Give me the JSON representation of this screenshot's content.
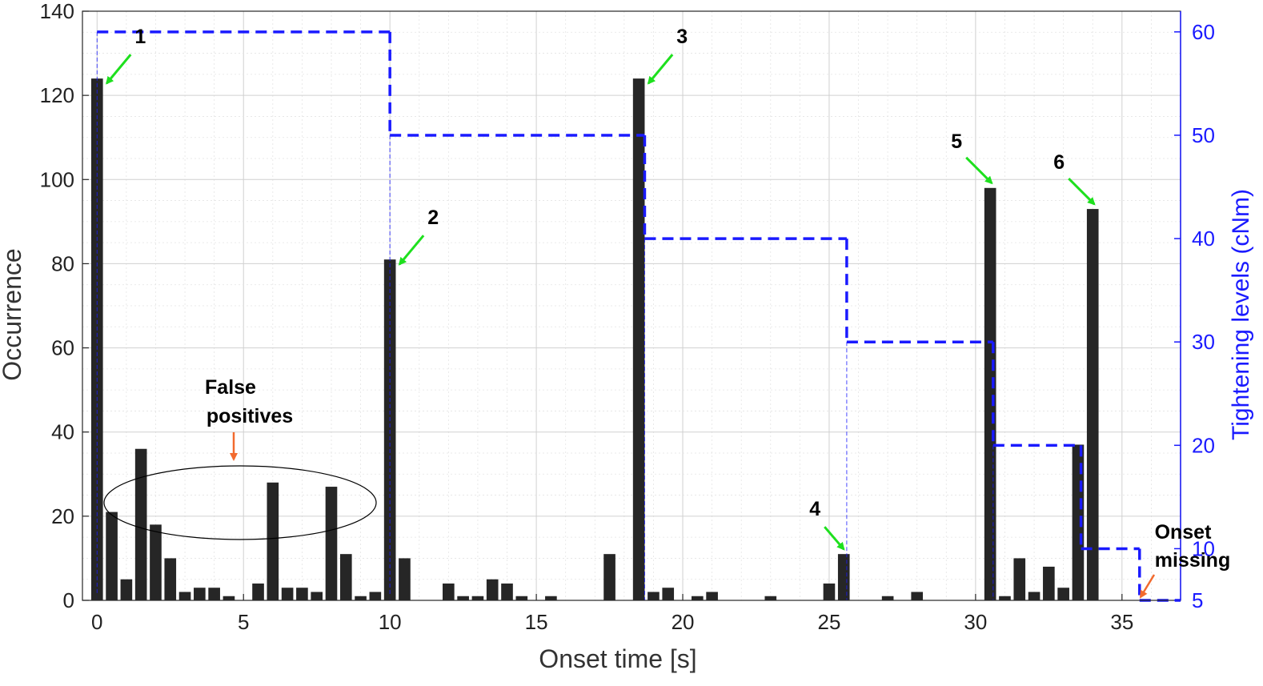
{
  "chart_data": {
    "type": "bar",
    "xlabel": "Onset time [s]",
    "ylabel": "Occurrence",
    "y2label": "Tightening levels (cNm)",
    "xlim": [
      -0.5,
      37
    ],
    "ylim": [
      0,
      140
    ],
    "y2lim": [
      5,
      62
    ],
    "xticks": [
      0,
      5,
      10,
      15,
      20,
      25,
      30,
      35
    ],
    "yticks": [
      0,
      20,
      40,
      60,
      80,
      100,
      120,
      140
    ],
    "y2ticks": [
      5,
      10,
      20,
      30,
      40,
      50,
      60
    ],
    "grid": true,
    "bar_color": "#262626",
    "step_color": "#1a1aff",
    "bars": [
      {
        "x": 0.0,
        "y": 124
      },
      {
        "x": 0.5,
        "y": 21
      },
      {
        "x": 1.0,
        "y": 5
      },
      {
        "x": 1.5,
        "y": 36
      },
      {
        "x": 2.0,
        "y": 18
      },
      {
        "x": 2.5,
        "y": 10
      },
      {
        "x": 3.0,
        "y": 2
      },
      {
        "x": 3.5,
        "y": 3
      },
      {
        "x": 4.0,
        "y": 3
      },
      {
        "x": 4.5,
        "y": 1
      },
      {
        "x": 5.5,
        "y": 4
      },
      {
        "x": 6.0,
        "y": 28
      },
      {
        "x": 6.5,
        "y": 3
      },
      {
        "x": 7.0,
        "y": 3
      },
      {
        "x": 7.5,
        "y": 2
      },
      {
        "x": 8.0,
        "y": 27
      },
      {
        "x": 8.5,
        "y": 11
      },
      {
        "x": 9.0,
        "y": 1
      },
      {
        "x": 9.5,
        "y": 2
      },
      {
        "x": 10.0,
        "y": 81
      },
      {
        "x": 10.5,
        "y": 10
      },
      {
        "x": 12.0,
        "y": 4
      },
      {
        "x": 12.5,
        "y": 1
      },
      {
        "x": 13.0,
        "y": 1
      },
      {
        "x": 13.5,
        "y": 5
      },
      {
        "x": 14.0,
        "y": 4
      },
      {
        "x": 14.5,
        "y": 1
      },
      {
        "x": 15.5,
        "y": 1
      },
      {
        "x": 17.5,
        "y": 11
      },
      {
        "x": 18.5,
        "y": 124
      },
      {
        "x": 19.0,
        "y": 2
      },
      {
        "x": 19.5,
        "y": 3
      },
      {
        "x": 20.5,
        "y": 1
      },
      {
        "x": 21.0,
        "y": 2
      },
      {
        "x": 23.0,
        "y": 1
      },
      {
        "x": 25.0,
        "y": 4
      },
      {
        "x": 25.5,
        "y": 11
      },
      {
        "x": 27.0,
        "y": 1
      },
      {
        "x": 28.0,
        "y": 2
      },
      {
        "x": 30.5,
        "y": 98
      },
      {
        "x": 31.0,
        "y": 1
      },
      {
        "x": 31.5,
        "y": 10
      },
      {
        "x": 32.0,
        "y": 2
      },
      {
        "x": 32.5,
        "y": 8
      },
      {
        "x": 33.0,
        "y": 3
      },
      {
        "x": 33.5,
        "y": 37
      },
      {
        "x": 34.0,
        "y": 93
      }
    ],
    "tightening_steps": [
      {
        "x0": 0.0,
        "x1": 10.0,
        "level": 60
      },
      {
        "x0": 10.0,
        "x1": 18.7,
        "level": 50
      },
      {
        "x0": 18.7,
        "x1": 25.6,
        "level": 40
      },
      {
        "x0": 25.6,
        "x1": 30.6,
        "level": 30
      },
      {
        "x0": 30.6,
        "x1": 33.6,
        "level": 20
      },
      {
        "x0": 33.6,
        "x1": 35.6,
        "level": 10
      },
      {
        "x0": 35.6,
        "x1": 37.0,
        "level": 5
      }
    ],
    "onset_markers": [
      {
        "label": "1",
        "x": 0.0,
        "y": 124
      },
      {
        "label": "2",
        "x": 10.0,
        "y": 81
      },
      {
        "label": "3",
        "x": 18.5,
        "y": 124
      },
      {
        "label": "4",
        "x": 25.5,
        "y": 11
      },
      {
        "label": "5",
        "x": 30.5,
        "y": 98
      },
      {
        "label": "6",
        "x": 34.0,
        "y": 93
      }
    ],
    "annotations": {
      "false_positives_line1": "False",
      "false_positives_line2": "positives",
      "onset_missing_line1": "Onset",
      "onset_missing_line2": "missing"
    }
  }
}
